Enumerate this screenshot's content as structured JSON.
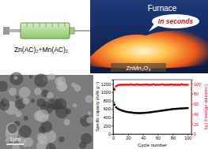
{
  "chart_data": {
    "type": "scatter",
    "x_label": "Cycle number",
    "y_label": "Specific capacity (mAh g⁻¹)",
    "y2_label": "Coulombic efficiency (%)",
    "x": [
      1,
      2,
      4,
      6,
      8,
      10,
      12,
      14,
      16,
      18,
      20,
      22,
      24,
      26,
      28,
      30,
      32,
      34,
      36,
      38,
      40,
      42,
      44,
      46,
      48,
      50,
      52,
      54,
      56,
      58,
      60,
      62,
      64,
      66,
      68,
      70,
      72,
      74,
      76,
      78,
      80,
      82,
      84,
      86,
      88,
      90,
      92,
      94,
      96,
      98,
      100
    ],
    "xlim": [
      0,
      105
    ],
    "xticks": [
      0,
      20,
      40,
      60,
      80,
      100
    ],
    "ylim": [
      0,
      1300
    ],
    "yticks": [
      0,
      200,
      400,
      600,
      800,
      1000,
      1200
    ],
    "y2lim": [
      0,
      108.3
    ],
    "y2ticks": [
      0,
      20,
      40,
      60,
      80,
      100
    ],
    "series": [
      {
        "color": "#000000",
        "marker": "square",
        "values": [
          1080,
          700,
          640,
          610,
          590,
          575,
          560,
          550,
          540,
          530,
          525,
          520,
          515,
          510,
          505,
          505,
          500,
          500,
          500,
          500,
          505,
          505,
          510,
          510,
          515,
          520,
          525,
          530,
          535,
          540,
          545,
          550,
          555,
          560,
          565,
          570,
          575,
          580,
          585,
          590,
          595,
          600,
          600,
          605,
          605,
          610,
          610,
          615,
          615,
          620,
          620
        ]
      },
      {
        "color": "#e8000b",
        "marker": "circle",
        "axis": "y2",
        "values": [
          62,
          88,
          95,
          97,
          98,
          98,
          98,
          98,
          98,
          98,
          98,
          98,
          99,
          98,
          98,
          98,
          99,
          98,
          98,
          98,
          98,
          98,
          99,
          98,
          98,
          98,
          98,
          99,
          98,
          98,
          98,
          98,
          98,
          99,
          98,
          98,
          98,
          98,
          98,
          99,
          98,
          98,
          98,
          98,
          98,
          98,
          99,
          98,
          98,
          98,
          98
        ]
      }
    ]
  },
  "diagram": {
    "syringe_label": "Zn(AC)₂+Mn(AC)₂",
    "furnace_label": "Furnace",
    "callout": "In seconds",
    "product_label": "ZnMn₂O₄",
    "sem_scale_bar": "1μm"
  }
}
